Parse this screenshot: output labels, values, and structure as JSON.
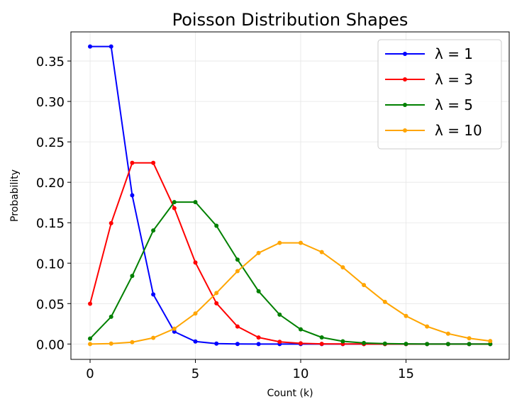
{
  "chart_data": {
    "type": "line",
    "title": "Poisson Distribution Shapes",
    "xlabel": "Count (k)",
    "ylabel": "Probability",
    "xlim": [
      -0.91,
      19.9
    ],
    "ylim": [
      -0.019,
      0.386
    ],
    "xticks": [
      0,
      5,
      10,
      15
    ],
    "xtick_labels": [
      "0",
      "5",
      "10",
      "15"
    ],
    "yticks": [
      0,
      0.05,
      0.1,
      0.15,
      0.2,
      0.25,
      0.3,
      0.35
    ],
    "ytick_labels": [
      "0.00",
      "0.05",
      "0.10",
      "0.15",
      "0.20",
      "0.25",
      "0.30",
      "0.35"
    ],
    "grid": true,
    "legend_position": "top-right",
    "x": [
      0,
      1,
      2,
      3,
      4,
      5,
      6,
      7,
      8,
      9,
      10,
      11,
      12,
      13,
      14,
      15,
      16,
      17,
      18,
      19
    ],
    "series": [
      {
        "name": "λ = 1",
        "color": "#0000ff",
        "values": [
          0.3679,
          0.3679,
          0.1839,
          0.0613,
          0.0153,
          0.0031,
          0.0005,
          0.0001,
          0.0,
          0.0,
          0.0,
          0.0,
          0.0,
          0.0,
          0.0,
          0.0,
          0.0,
          0.0,
          0.0,
          0.0
        ]
      },
      {
        "name": "λ = 3",
        "color": "#ff0000",
        "values": [
          0.0498,
          0.1494,
          0.224,
          0.224,
          0.168,
          0.1008,
          0.0504,
          0.0216,
          0.0081,
          0.0027,
          0.0008,
          0.0002,
          0.0001,
          0.0,
          0.0,
          0.0,
          0.0,
          0.0,
          0.0,
          0.0
        ]
      },
      {
        "name": "λ = 5",
        "color": "#008000",
        "values": [
          0.0067,
          0.0337,
          0.0842,
          0.1404,
          0.1755,
          0.1755,
          0.1462,
          0.1044,
          0.0653,
          0.0363,
          0.0181,
          0.0082,
          0.0034,
          0.0013,
          0.0005,
          0.0002,
          0.0,
          0.0,
          0.0,
          0.0
        ]
      },
      {
        "name": "λ = 10",
        "color": "#ffa500",
        "values": [
          0.0,
          0.0005,
          0.0023,
          0.0076,
          0.0189,
          0.0378,
          0.0631,
          0.0901,
          0.1126,
          0.1251,
          0.1251,
          0.1137,
          0.0948,
          0.0729,
          0.0521,
          0.0347,
          0.0217,
          0.0128,
          0.0071,
          0.0037
        ]
      }
    ]
  }
}
